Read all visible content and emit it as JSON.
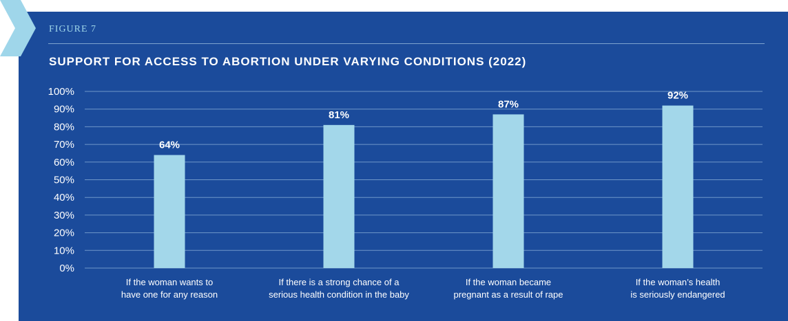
{
  "figure_label": "FIGURE 7",
  "chart_data": {
    "type": "bar",
    "title": "SUPPORT FOR ACCESS TO ABORTION UNDER VARYING CONDITIONS (2022)",
    "categories": [
      [
        "If the woman wants to",
        "have one for any reason"
      ],
      [
        "If there is a strong chance of a",
        "serious health condition in the baby"
      ],
      [
        "If the woman became",
        "pregnant as a result of rape"
      ],
      [
        "If the woman’s health",
        "is seriously endangered"
      ]
    ],
    "values": [
      64,
      81,
      87,
      92
    ],
    "value_labels": [
      "64%",
      "81%",
      "87%",
      "92%"
    ],
    "ylim": [
      0,
      100
    ],
    "yticks": [
      0,
      10,
      20,
      30,
      40,
      50,
      60,
      70,
      80,
      90,
      100
    ],
    "ytick_labels": [
      "0%",
      "10%",
      "20%",
      "30%",
      "40%",
      "50%",
      "60%",
      "70%",
      "80%",
      "90%",
      "100%"
    ],
    "xlabel": "",
    "ylabel": "",
    "grid": true,
    "legend": "none"
  },
  "colors": {
    "panel": "#1b4b9b",
    "bar": "#a3d7ea",
    "grid": "#6f97c9",
    "accent": "#9fd6ea",
    "text": "#ffffff"
  }
}
